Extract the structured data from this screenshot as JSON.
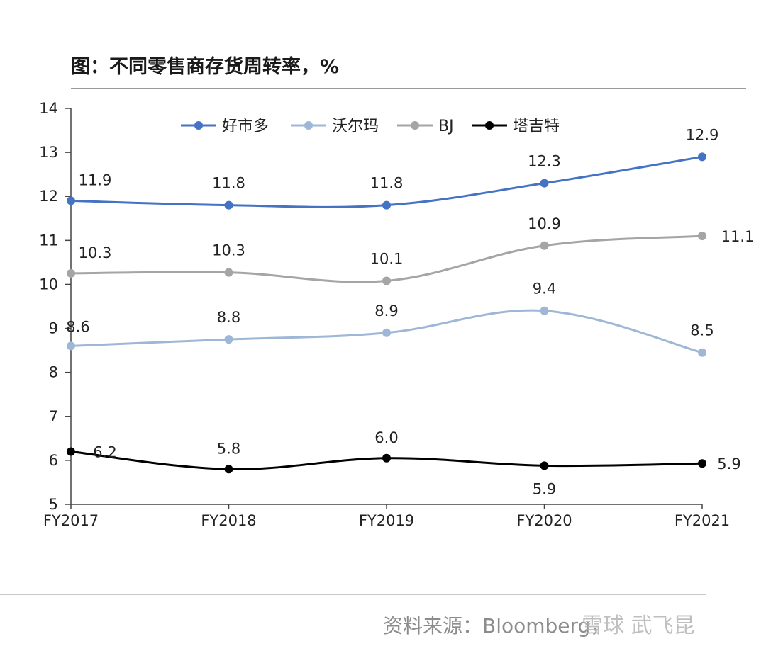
{
  "title": "图：不同零售商存货周转率，%",
  "source": "资料来源：Bloomberg，",
  "watermark": "雪球 武飞昆",
  "chart_data": {
    "type": "line",
    "categories": [
      "FY2017",
      "FY2018",
      "FY2019",
      "FY2020",
      "FY2021"
    ],
    "ylim": [
      5,
      14
    ],
    "yticks": [
      5,
      6,
      7,
      8,
      9,
      10,
      11,
      12,
      13,
      14
    ],
    "grid": false,
    "legend_position": "top",
    "series": [
      {
        "name": "好市多",
        "color": "#4472c4",
        "values": [
          11.9,
          11.8,
          11.8,
          12.3,
          12.9
        ],
        "labels": [
          "11.9",
          "11.8",
          "11.8",
          "12.3",
          "12.9"
        ]
      },
      {
        "name": "沃尔玛",
        "color": "#9fb7d6",
        "values": [
          8.6,
          8.75,
          8.9,
          9.4,
          8.45
        ],
        "labels": [
          "8.6",
          "8.8",
          "8.9",
          "9.4",
          "8.5"
        ]
      },
      {
        "name": "BJ",
        "color": "#a5a5a5",
        "values": [
          10.25,
          10.27,
          10.08,
          10.88,
          11.1
        ],
        "labels": [
          "10.3",
          "10.3",
          "10.1",
          "10.9",
          "11.1"
        ]
      },
      {
        "name": "塔吉特",
        "color": "#000000",
        "values": [
          6.2,
          5.8,
          6.05,
          5.88,
          5.93
        ],
        "labels": [
          "6.2",
          "5.8",
          "6.0",
          "5.9",
          "5.9"
        ]
      }
    ]
  }
}
